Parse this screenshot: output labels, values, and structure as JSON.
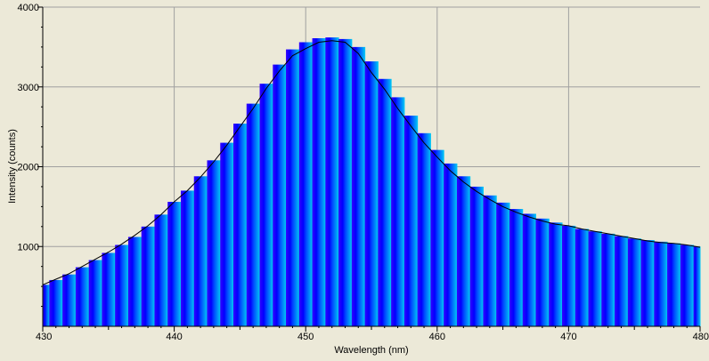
{
  "chart_data": {
    "type": "area",
    "xlabel": "Wavelength (nm)",
    "ylabel": "Intensity (counts)",
    "xlim": [
      430,
      480
    ],
    "ylim": [
      0,
      4000
    ],
    "x_ticks": [
      430,
      440,
      450,
      460,
      470,
      480
    ],
    "y_ticks": [
      1000,
      2000,
      3000,
      4000
    ],
    "grid": true,
    "legend": "none",
    "colors": {
      "background": "#ece9d8",
      "grid": "#a0a0a0",
      "line": "#000000",
      "fill_left": "#3300ff",
      "fill_mid": "#0000ff",
      "fill_peak": "#0044ff",
      "fill_right": "#00ccf5"
    },
    "series": [
      {
        "style": "filled-bars",
        "x": [
          430,
          431,
          432,
          433,
          434,
          435,
          436,
          437,
          438,
          439,
          440,
          441,
          442,
          443,
          444,
          445,
          446,
          447,
          448,
          449,
          450,
          451,
          452,
          453,
          454,
          455,
          456,
          457,
          458,
          459,
          460,
          461,
          462,
          463,
          464,
          465,
          466,
          467,
          468,
          469,
          470,
          471,
          472,
          473,
          474,
          475,
          476,
          477,
          478,
          479,
          480
        ],
        "y": [
          520,
          580,
          650,
          740,
          830,
          920,
          1020,
          1120,
          1250,
          1400,
          1560,
          1700,
          1880,
          2080,
          2300,
          2540,
          2790,
          3040,
          3280,
          3470,
          3560,
          3610,
          3620,
          3600,
          3500,
          3320,
          3100,
          2870,
          2640,
          2420,
          2210,
          2040,
          1880,
          1750,
          1640,
          1550,
          1470,
          1410,
          1350,
          1300,
          1260,
          1220,
          1190,
          1160,
          1130,
          1100,
          1080,
          1060,
          1040,
          1020,
          1000
        ]
      },
      {
        "style": "line",
        "x": [
          430,
          431,
          432,
          433,
          434,
          435,
          436,
          437,
          438,
          439,
          440,
          441,
          442,
          443,
          444,
          445,
          446,
          447,
          448,
          449,
          450,
          451,
          452,
          453,
          454,
          455,
          456,
          457,
          458,
          459,
          460,
          461,
          462,
          463,
          464,
          465,
          466,
          467,
          468,
          469,
          470,
          471,
          472,
          473,
          474,
          475,
          476,
          477,
          478,
          479,
          480
        ],
        "y": [
          520,
          590,
          660,
          750,
          840,
          930,
          1030,
          1140,
          1260,
          1400,
          1560,
          1700,
          1870,
          2060,
          2270,
          2500,
          2730,
          2980,
          3200,
          3390,
          3480,
          3560,
          3580,
          3560,
          3420,
          3180,
          2970,
          2730,
          2510,
          2300,
          2120,
          1950,
          1810,
          1690,
          1590,
          1500,
          1430,
          1370,
          1320,
          1280,
          1260,
          1220,
          1190,
          1160,
          1130,
          1100,
          1070,
          1050,
          1040,
          1020,
          990
        ]
      }
    ]
  }
}
